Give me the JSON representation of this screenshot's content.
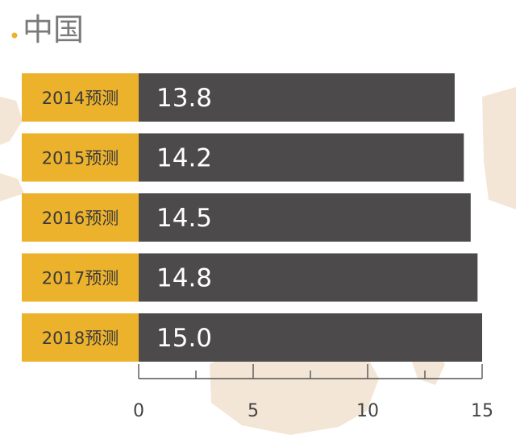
{
  "chart_data": {
    "type": "bar",
    "orientation": "horizontal",
    "title": "中国",
    "categories": [
      "2014预测",
      "2015预测",
      "2016预测",
      "2017预测",
      "2018预测"
    ],
    "values": [
      13.8,
      14.2,
      14.5,
      14.8,
      15.0
    ],
    "value_labels": [
      "13.8",
      "14.2",
      "14.5",
      "14.8",
      "15.0"
    ],
    "xlim": [
      0,
      15
    ],
    "x_ticks": [
      0,
      5,
      10,
      15
    ],
    "x_tick_labels": [
      "0",
      "5",
      "10",
      "15"
    ],
    "grid": false,
    "colors": {
      "category_label_bg": "#edb22c",
      "bar": "#4c4a4a",
      "value_text": "#ffffff",
      "title": "#7a7a7a",
      "title_dot": "#edb22c",
      "axis": "#555555",
      "background_map": "#f3e6d6"
    }
  }
}
